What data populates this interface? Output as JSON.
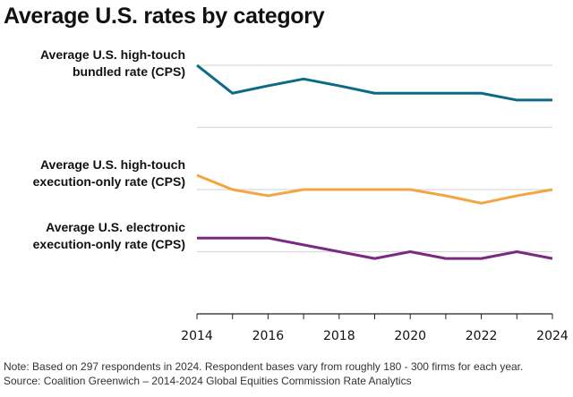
{
  "chart_data": {
    "type": "line",
    "title": "Average U.S. rates by category",
    "x": [
      2014,
      2015,
      2016,
      2017,
      2018,
      2019,
      2020,
      2021,
      2022,
      2023,
      2024
    ],
    "xticks": [
      "2014",
      "2016",
      "2018",
      "2020",
      "2022",
      "2024"
    ],
    "xlim": [
      2014,
      2024
    ],
    "ylim": [
      0,
      4
    ],
    "y_tick_labels_shown": false,
    "grid": true,
    "series": [
      {
        "name": "Average U.S. high-touch bundled rate (CPS)",
        "color": "#0b6b86",
        "values": [
          4.0,
          3.55,
          3.67,
          3.78,
          3.67,
          3.55,
          3.55,
          3.55,
          3.55,
          3.44,
          3.44
        ]
      },
      {
        "name": "Average U.S. high-touch execution-only rate (CPS)",
        "color": "#f2a541",
        "values": [
          2.23,
          2.0,
          1.9,
          2.0,
          2.0,
          2.0,
          2.0,
          1.9,
          1.78,
          1.9,
          2.0
        ]
      },
      {
        "name": "Average U.S. electronic execution-only rate (CPS)",
        "color": "#7b2a82",
        "values": [
          1.22,
          1.22,
          1.22,
          1.11,
          1.0,
          0.89,
          1.0,
          0.89,
          0.89,
          1.0,
          0.89
        ]
      }
    ],
    "series_labels": [
      [
        "Average U.S. high-touch",
        "bundled rate (CPS)"
      ],
      [
        "Average U.S. high-touch",
        "execution-only rate (CPS)"
      ],
      [
        "Average U.S. electronic",
        "execution-only rate (CPS)"
      ]
    ]
  },
  "footer": {
    "note": "Note: Based on 297 respondents in 2024. Respondent bases vary from roughly 180 - 300 firms for each year.",
    "source": "Source: Coalition Greenwich – 2014-2024 Global Equities Commission Rate Analytics"
  }
}
